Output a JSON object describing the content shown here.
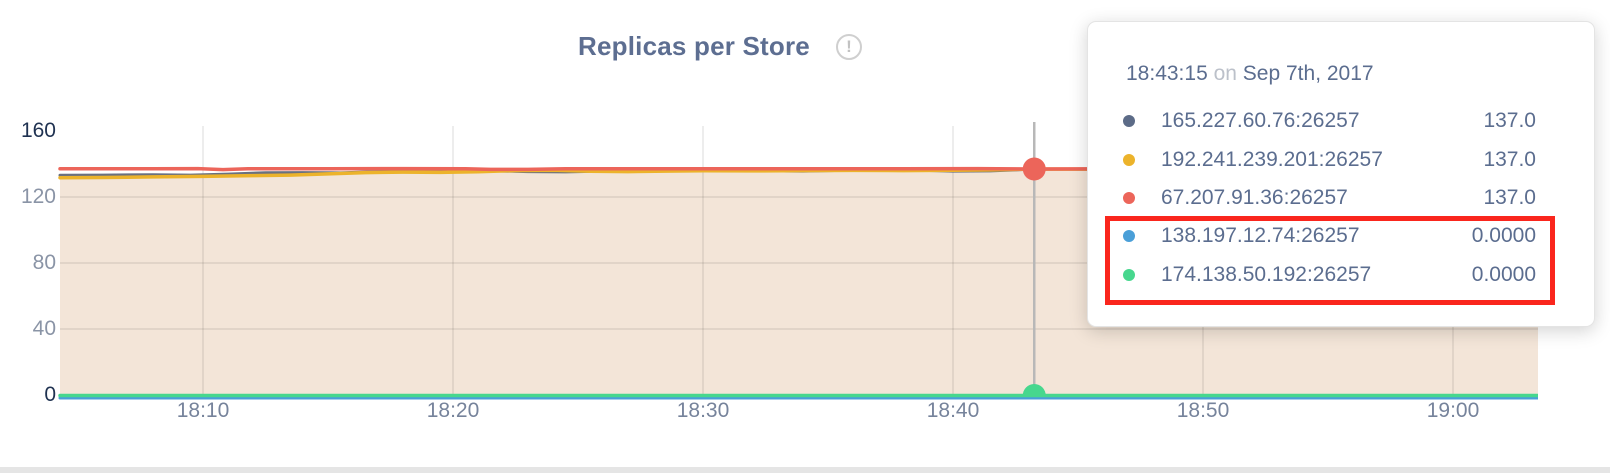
{
  "chart": {
    "title": "Replicas per Store",
    "info_icon": "!"
  },
  "tooltip": {
    "time": "18:43:15",
    "conjunction": "on",
    "date": "Sep 7th, 2017",
    "rows": [
      {
        "label": "165.227.60.76:26257",
        "value": "137.0",
        "color": "#5c6b87",
        "highlighted": false
      },
      {
        "label": "192.241.239.201:26257",
        "value": "137.0",
        "color": "#ecb32b",
        "highlighted": false
      },
      {
        "label": "67.207.91.36:26257",
        "value": "137.0",
        "color": "#ec655a",
        "highlighted": false
      },
      {
        "label": "138.197.12.74:26257",
        "value": "0.0000",
        "color": "#4a9fd8",
        "highlighted": true
      },
      {
        "label": "174.138.50.192:26257",
        "value": "0.0000",
        "color": "#47d78e",
        "highlighted": true
      }
    ]
  },
  "annotation": {
    "type": "highlight-box",
    "color": "#fa261d",
    "rows_highlighted": [
      "138.197.12.74:26257",
      "174.138.50.192:26257"
    ]
  },
  "chart_data": {
    "type": "area",
    "title": "Replicas per Store",
    "grid": true,
    "legend_position": "tooltip",
    "area_fill_color": "#f3e5d8",
    "x_axis": {
      "unit": "time of day",
      "tick_labels": [
        "18:10",
        "18:20",
        "18:30",
        "18:40",
        "18:50",
        "19:00"
      ],
      "tick_minutes": [
        10,
        20,
        30,
        40,
        50,
        60
      ],
      "range_minutes": [
        4.28,
        63.4
      ]
    },
    "y_axis": {
      "ticks": [
        0,
        40,
        80,
        120,
        160
      ],
      "gridline_ticks": [
        40,
        80,
        120
      ],
      "range": [
        0,
        160
      ]
    },
    "cursor": {
      "time_minutes": 43.25,
      "time_label": "18:43:15",
      "date_label": "Sep 7th, 2017"
    },
    "cursor_dot_series": [
      2,
      4
    ],
    "series": [
      {
        "name": "165.227.60.76:26257",
        "color": "#6a707f",
        "value_at_cursor": 137.0,
        "points": [
          [
            4.28,
            133.2
          ],
          [
            6,
            133.3
          ],
          [
            8,
            133.5
          ],
          [
            9.5,
            133.3
          ],
          [
            11,
            133.9
          ],
          [
            12.5,
            134.7
          ],
          [
            14,
            134.8
          ],
          [
            15.5,
            134.6
          ],
          [
            17,
            135.4
          ],
          [
            18.5,
            135.8
          ],
          [
            20,
            135.6
          ],
          [
            21.5,
            135.9
          ],
          [
            23,
            135.4
          ],
          [
            24.5,
            135.2
          ],
          [
            26,
            135.7
          ],
          [
            28,
            135.9
          ],
          [
            30,
            135.8
          ],
          [
            32,
            135.9
          ],
          [
            34,
            135.7
          ],
          [
            35.5,
            136.1
          ],
          [
            37,
            136.5
          ],
          [
            38.5,
            136.3
          ],
          [
            40,
            135.7
          ],
          [
            41.5,
            135.8
          ],
          [
            42.5,
            136.4
          ],
          [
            43.25,
            137.0
          ],
          [
            44.5,
            136.9
          ],
          [
            47,
            136.7
          ],
          [
            52,
            136.7
          ],
          [
            58,
            136.7
          ],
          [
            63.4,
            136.7
          ]
        ]
      },
      {
        "name": "192.241.239.201:26257",
        "color": "#ecb32b",
        "value_at_cursor": 137.0,
        "area": true,
        "points": [
          [
            4.28,
            131.7
          ],
          [
            6,
            131.8
          ],
          [
            8,
            132.2
          ],
          [
            10,
            132.5
          ],
          [
            12,
            133.0
          ],
          [
            13.5,
            133.3
          ],
          [
            15,
            134.0
          ],
          [
            16.5,
            134.8
          ],
          [
            18,
            135.1
          ],
          [
            19.5,
            134.9
          ],
          [
            21,
            135.3
          ],
          [
            22.5,
            136.0
          ],
          [
            24,
            136.2
          ],
          [
            25.5,
            135.6
          ],
          [
            27,
            135.4
          ],
          [
            28.5,
            135.7
          ],
          [
            30,
            135.9
          ],
          [
            32,
            135.8
          ],
          [
            34,
            136.0
          ],
          [
            36,
            136.1
          ],
          [
            38,
            136.0
          ],
          [
            40,
            136.2
          ],
          [
            41.5,
            136.4
          ],
          [
            43.25,
            137.0
          ],
          [
            45,
            136.9
          ],
          [
            50,
            136.9
          ],
          [
            55,
            136.9
          ],
          [
            60,
            136.9
          ],
          [
            63.4,
            136.9
          ]
        ]
      },
      {
        "name": "67.207.91.36:26257",
        "color": "#ec655a",
        "value_at_cursor": 137.0,
        "points": [
          [
            4.28,
            137.1
          ],
          [
            8,
            137.1
          ],
          [
            9.8,
            137.2
          ],
          [
            10.8,
            136.6
          ],
          [
            11.8,
            137.1
          ],
          [
            15,
            137.1
          ],
          [
            18,
            137.2
          ],
          [
            20.5,
            137.1
          ],
          [
            21.5,
            136.7
          ],
          [
            23,
            136.7
          ],
          [
            24.5,
            137.1
          ],
          [
            28,
            137.1
          ],
          [
            33,
            137.1
          ],
          [
            38,
            137.1
          ],
          [
            41,
            137.2
          ],
          [
            43.25,
            137.0
          ],
          [
            47,
            137.1
          ],
          [
            55,
            137.1
          ],
          [
            60,
            137.1
          ],
          [
            63.4,
            137.1
          ]
        ]
      },
      {
        "name": "138.197.12.74:26257",
        "color": "#4a9fd8",
        "value_at_cursor": 0.0,
        "points": [
          [
            4.28,
            0
          ],
          [
            12,
            0
          ],
          [
            20,
            0
          ],
          [
            30,
            0
          ],
          [
            43.25,
            0
          ],
          [
            55,
            0
          ],
          [
            63.4,
            0
          ]
        ]
      },
      {
        "name": "174.138.50.192:26257",
        "color": "#47d78e",
        "value_at_cursor": 0.0,
        "points": [
          [
            4.28,
            0
          ],
          [
            12,
            0
          ],
          [
            20,
            0
          ],
          [
            30,
            0
          ],
          [
            43.25,
            0
          ],
          [
            55,
            0
          ],
          [
            63.4,
            0
          ]
        ]
      }
    ]
  }
}
